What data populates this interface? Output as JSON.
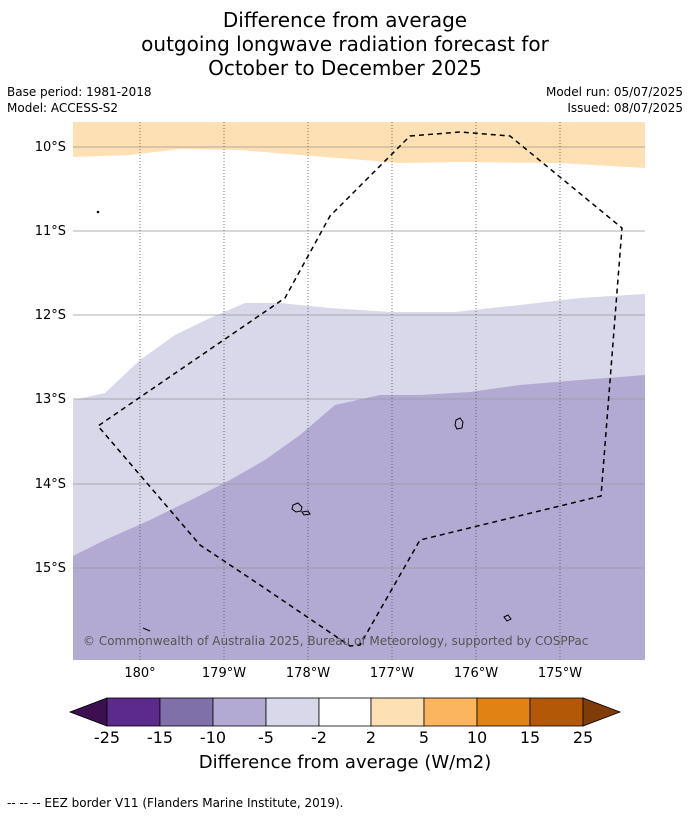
{
  "title": {
    "line1": "Difference from average",
    "line2": "outgoing longwave radiation forecast for",
    "line3": "October to December 2025"
  },
  "meta": {
    "base_period": "Base period: 1981-2018",
    "model": "Model: ACCESS-S2",
    "model_run": "Model run: 05/07/2025",
    "issued": "Issued: 08/07/2025"
  },
  "map": {
    "lat_labels": [
      "10°S",
      "11°S",
      "12°S",
      "13°S",
      "14°S",
      "15°S"
    ],
    "lon_labels": [
      "180°",
      "179°W",
      "178°W",
      "177°W",
      "176°W",
      "175°W"
    ],
    "copyright": "© Commonwealth of Australia 2025, Bureau of Meteorology, supported by COSPPac",
    "colors": {
      "band_2_5": "#fde0b3",
      "band_neg5_neg2": "#d8d8ea",
      "band_neg10_neg5": "#b2aad2",
      "land_outline": "#000000",
      "eez_border": "#000000"
    }
  },
  "legend": {
    "title": "Difference from average (W/m2)",
    "ticks": [
      "-25",
      "-15",
      "-10",
      "-5",
      "-2",
      "2",
      "5",
      "10",
      "15",
      "25"
    ],
    "colors": [
      "#3b0f50",
      "#5b2a8b",
      "#8070aa",
      "#b2aad2",
      "#d8d8ea",
      "#ffffff",
      "#fde0b3",
      "#fbb55f",
      "#e08214",
      "#b35806",
      "#7f3b08"
    ]
  },
  "footer": {
    "eez_note": "-- -- -- EEZ border V11 (Flanders Marine Institute, 2019)."
  }
}
